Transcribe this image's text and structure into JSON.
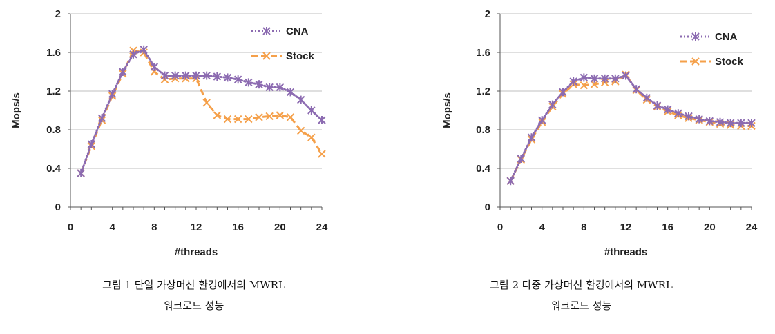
{
  "chart_data": [
    {
      "type": "line",
      "title": "",
      "xlabel": "#threads",
      "ylabel": "Mops/s",
      "xlim": [
        0,
        24
      ],
      "ylim": [
        0,
        2
      ],
      "x_ticks": [
        0,
        4,
        8,
        12,
        16,
        20,
        24
      ],
      "y_ticks": [
        0,
        0.4,
        0.8,
        1.2,
        1.6,
        2
      ],
      "y_tick_labels": [
        "0",
        "0.4",
        "0.8",
        "1.2",
        "1.6",
        "2"
      ],
      "legend": "top-right",
      "grid": "horizontal",
      "x": [
        1,
        2,
        3,
        4,
        5,
        6,
        7,
        8,
        9,
        10,
        11,
        12,
        13,
        14,
        15,
        16,
        17,
        18,
        19,
        20,
        21,
        22,
        23,
        24
      ],
      "series": [
        {
          "name": "CNA",
          "color": "#8c6bb1",
          "style": "dotted",
          "marker": "asterisk",
          "values": [
            0.35,
            0.65,
            0.92,
            1.17,
            1.4,
            1.58,
            1.63,
            1.45,
            1.36,
            1.36,
            1.36,
            1.36,
            1.36,
            1.35,
            1.34,
            1.32,
            1.29,
            1.27,
            1.24,
            1.24,
            1.19,
            1.11,
            1.0,
            0.9
          ]
        },
        {
          "name": "Stock",
          "color": "#f5a04a",
          "style": "dashed",
          "marker": "x",
          "values": [
            0.35,
            0.63,
            0.9,
            1.15,
            1.38,
            1.62,
            1.6,
            1.4,
            1.32,
            1.33,
            1.33,
            1.33,
            1.08,
            0.95,
            0.91,
            0.91,
            0.91,
            0.93,
            0.94,
            0.95,
            0.93,
            0.79,
            0.72,
            0.55
          ]
        }
      ]
    },
    {
      "type": "line",
      "title": "",
      "xlabel": "#threads",
      "ylabel": "Mops/s",
      "xlim": [
        0,
        24
      ],
      "ylim": [
        0,
        2
      ],
      "x_ticks": [
        0,
        4,
        8,
        12,
        16,
        20,
        24
      ],
      "y_ticks": [
        0,
        0.4,
        0.8,
        1.2,
        1.6,
        2
      ],
      "y_tick_labels": [
        "0",
        "0.4",
        "0.8",
        "1.2",
        "1.6",
        "2"
      ],
      "legend": "top-right",
      "grid": "horizontal",
      "x": [
        1,
        2,
        3,
        4,
        5,
        6,
        7,
        8,
        9,
        10,
        11,
        12,
        13,
        14,
        15,
        16,
        17,
        18,
        19,
        20,
        21,
        22,
        23,
        24
      ],
      "series": [
        {
          "name": "CNA",
          "color": "#8c6bb1",
          "style": "dotted",
          "marker": "asterisk",
          "values": [
            0.27,
            0.5,
            0.72,
            0.9,
            1.06,
            1.19,
            1.3,
            1.34,
            1.33,
            1.33,
            1.33,
            1.36,
            1.22,
            1.13,
            1.05,
            1.01,
            0.97,
            0.94,
            0.91,
            0.89,
            0.88,
            0.87,
            0.87,
            0.87
          ]
        },
        {
          "name": "Stock",
          "color": "#f5a04a",
          "style": "dashed",
          "marker": "x",
          "values": [
            0.27,
            0.49,
            0.7,
            0.88,
            1.04,
            1.17,
            1.27,
            1.26,
            1.27,
            1.29,
            1.3,
            1.37,
            1.21,
            1.11,
            1.04,
            0.99,
            0.95,
            0.92,
            0.9,
            0.88,
            0.86,
            0.85,
            0.84,
            0.84
          ]
        }
      ]
    }
  ],
  "captions": [
    {
      "line1": "그림 1 단일 가상머신 환경에서의 MWRL",
      "line2": "워크로드 성능"
    },
    {
      "line1": "그림 2 다중 가상머신 환경에서의 MWRL",
      "line2": "워크로드 성능"
    }
  ]
}
